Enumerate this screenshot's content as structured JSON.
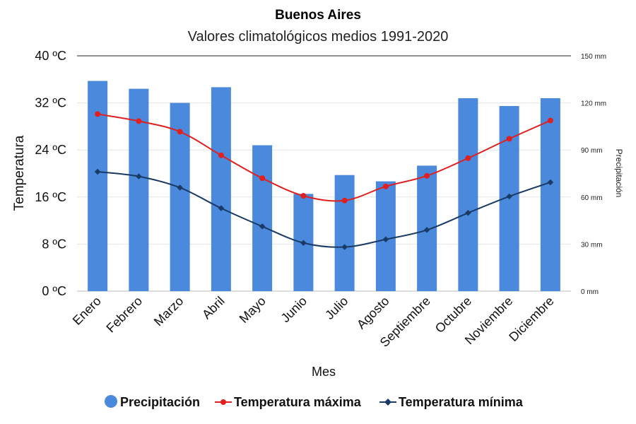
{
  "chart_data": {
    "type": "bar+line",
    "title": "Buenos Aires",
    "subtitle": "Valores climatológicos medios 1991-2020",
    "xlabel": "Mes",
    "ylabel_left": "Temperatura",
    "ylabel_right": "Precipitación",
    "categories": [
      "Enero",
      "Febrero",
      "Marzo",
      "Abril",
      "Mayo",
      "Junio",
      "Julio",
      "Agosto",
      "Septiembre",
      "Octubre",
      "Noviembre",
      "Diciembre"
    ],
    "ylim_left": [
      0,
      40
    ],
    "yticks_left": [
      "0 ºC",
      "8 ºC",
      "16 ºC",
      "24 ºC",
      "32 ºC",
      "40 ºC"
    ],
    "ylim_right": [
      0,
      150
    ],
    "yticks_right": [
      "0 mm",
      "30 mm",
      "60 mm",
      "90 mm",
      "120 mm",
      "150 mm"
    ],
    "grid": true,
    "legend_position": "bottom",
    "series": [
      {
        "name": "Precipitación",
        "kind": "bar",
        "axis": "right",
        "color": "#4a89dc",
        "values": [
          134,
          129,
          120,
          130,
          93,
          62,
          74,
          70,
          80,
          123,
          118,
          123
        ]
      },
      {
        "name": "Temperatura máxima",
        "kind": "line",
        "axis": "left",
        "color": "#e02020",
        "values": [
          30.1,
          28.9,
          27.1,
          23.1,
          19.2,
          16.2,
          15.4,
          17.8,
          19.6,
          22.6,
          25.9,
          29.0
        ]
      },
      {
        "name": "Temperatura mínima",
        "kind": "line",
        "axis": "left",
        "color": "#1a3a66",
        "values": [
          20.3,
          19.5,
          17.6,
          14.1,
          11.0,
          8.2,
          7.5,
          8.8,
          10.4,
          13.3,
          16.1,
          18.5
        ]
      }
    ]
  }
}
